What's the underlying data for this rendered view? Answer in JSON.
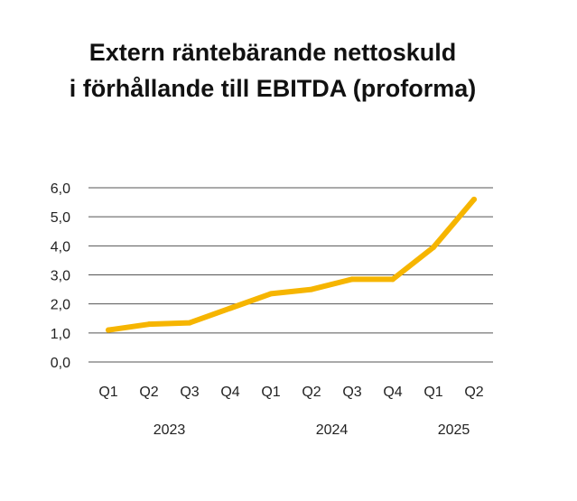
{
  "chart_data": {
    "type": "line",
    "title_lines": [
      "Extern räntebärande nettoskuld",
      "i förhållande till EBITDA (proforma)"
    ],
    "categories": [
      "Q1",
      "Q2",
      "Q3",
      "Q4",
      "Q1",
      "Q2",
      "Q3",
      "Q4",
      "Q1",
      "Q2"
    ],
    "year_labels": [
      "2023",
      "2024",
      "2025"
    ],
    "y_ticks": [
      "0,0",
      "1,0",
      "2,0",
      "3,0",
      "4,0",
      "5,0",
      "6,0"
    ],
    "ylim": [
      0,
      6
    ],
    "series": [
      {
        "values": [
          1.1,
          1.3,
          1.35,
          1.85,
          2.35,
          2.5,
          2.85,
          2.85,
          3.95,
          5.6
        ],
        "color": "#F6B500"
      }
    ],
    "grid": true,
    "gridline_color": "#555555"
  }
}
